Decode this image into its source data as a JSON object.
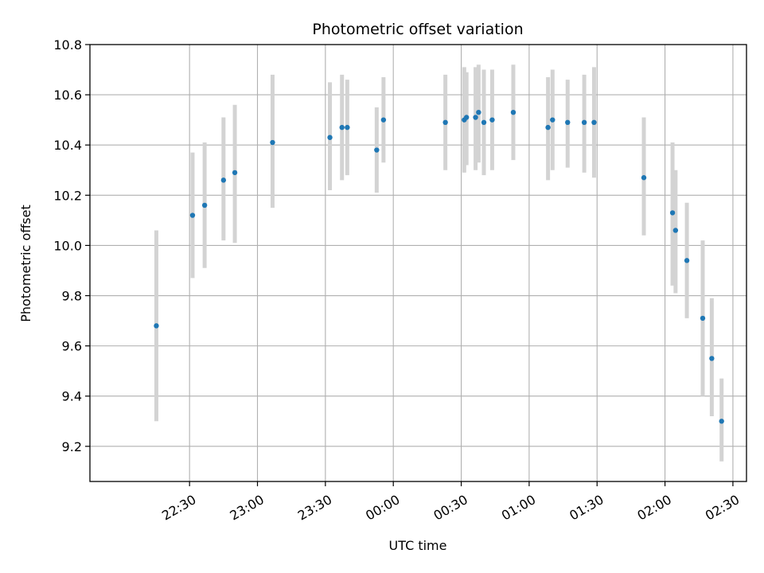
{
  "chart_data": {
    "type": "scatter",
    "title": "Photometric offset variation",
    "xlabel": "UTC time",
    "ylabel": "Photometric offset",
    "xlim_minutes": [
      -44,
      246
    ],
    "ylim": [
      9.06,
      10.8
    ],
    "grid": true,
    "point_color": "#1f77b4",
    "errorbar_color": "#d3d3d3",
    "x_ticks": [
      {
        "label": "22:30",
        "minutes": 0
      },
      {
        "label": "23:00",
        "minutes": 30
      },
      {
        "label": "23:30",
        "minutes": 60
      },
      {
        "label": "00:00",
        "minutes": 90
      },
      {
        "label": "00:30",
        "minutes": 120
      },
      {
        "label": "01:00",
        "minutes": 150
      },
      {
        "label": "01:30",
        "minutes": 180
      },
      {
        "label": "02:00",
        "minutes": 210
      },
      {
        "label": "02:30",
        "minutes": 240
      }
    ],
    "y_ticks": [
      "9.2",
      "9.4",
      "9.6",
      "9.8",
      "10.0",
      "10.2",
      "10.4",
      "10.6",
      "10.8"
    ],
    "points": [
      {
        "t": "22:15:20",
        "y": 9.68,
        "lo": 9.3,
        "hi": 10.06
      },
      {
        "t": "22:31:20",
        "y": 10.12,
        "lo": 9.87,
        "hi": 10.37
      },
      {
        "t": "22:36:40",
        "y": 10.16,
        "lo": 9.91,
        "hi": 10.41
      },
      {
        "t": "22:45:00",
        "y": 10.26,
        "lo": 10.02,
        "hi": 10.51
      },
      {
        "t": "22:50:00",
        "y": 10.29,
        "lo": 10.01,
        "hi": 10.56
      },
      {
        "t": "23:06:40",
        "y": 10.41,
        "lo": 10.15,
        "hi": 10.68
      },
      {
        "t": "23:32:00",
        "y": 10.43,
        "lo": 10.22,
        "hi": 10.65
      },
      {
        "t": "23:37:20",
        "y": 10.47,
        "lo": 10.26,
        "hi": 10.68
      },
      {
        "t": "23:39:40",
        "y": 10.47,
        "lo": 10.28,
        "hi": 10.66
      },
      {
        "t": "23:52:40",
        "y": 10.38,
        "lo": 10.21,
        "hi": 10.55
      },
      {
        "t": "23:55:40",
        "y": 10.5,
        "lo": 10.33,
        "hi": 10.67
      },
      {
        "t": "00:23:00",
        "y": 10.49,
        "lo": 10.3,
        "hi": 10.68
      },
      {
        "t": "00:31:20",
        "y": 10.5,
        "lo": 10.29,
        "hi": 10.71
      },
      {
        "t": "00:32:20",
        "y": 10.51,
        "lo": 10.32,
        "hi": 10.69
      },
      {
        "t": "00:36:20",
        "y": 10.51,
        "lo": 10.3,
        "hi": 10.71
      },
      {
        "t": "00:37:40",
        "y": 10.53,
        "lo": 10.33,
        "hi": 10.72
      },
      {
        "t": "00:40:00",
        "y": 10.49,
        "lo": 10.28,
        "hi": 10.7
      },
      {
        "t": "00:43:40",
        "y": 10.5,
        "lo": 10.3,
        "hi": 10.7
      },
      {
        "t": "00:53:00",
        "y": 10.53,
        "lo": 10.34,
        "hi": 10.72
      },
      {
        "t": "01:08:20",
        "y": 10.47,
        "lo": 10.26,
        "hi": 10.67
      },
      {
        "t": "01:10:20",
        "y": 10.5,
        "lo": 10.3,
        "hi": 10.7
      },
      {
        "t": "01:17:00",
        "y": 10.49,
        "lo": 10.31,
        "hi": 10.66
      },
      {
        "t": "01:24:20",
        "y": 10.49,
        "lo": 10.29,
        "hi": 10.68
      },
      {
        "t": "01:28:40",
        "y": 10.49,
        "lo": 10.27,
        "hi": 10.71
      },
      {
        "t": "01:50:40",
        "y": 10.27,
        "lo": 10.04,
        "hi": 10.51
      },
      {
        "t": "02:03:20",
        "y": 10.13,
        "lo": 9.84,
        "hi": 10.41
      },
      {
        "t": "02:04:40",
        "y": 10.06,
        "lo": 9.81,
        "hi": 10.3
      },
      {
        "t": "02:09:40",
        "y": 9.94,
        "lo": 9.71,
        "hi": 10.17
      },
      {
        "t": "02:16:40",
        "y": 9.71,
        "lo": 9.4,
        "hi": 10.02
      },
      {
        "t": "02:20:40",
        "y": 9.55,
        "lo": 9.32,
        "hi": 9.79
      },
      {
        "t": "02:25:00",
        "y": 9.3,
        "lo": 9.14,
        "hi": 9.47
      }
    ]
  }
}
